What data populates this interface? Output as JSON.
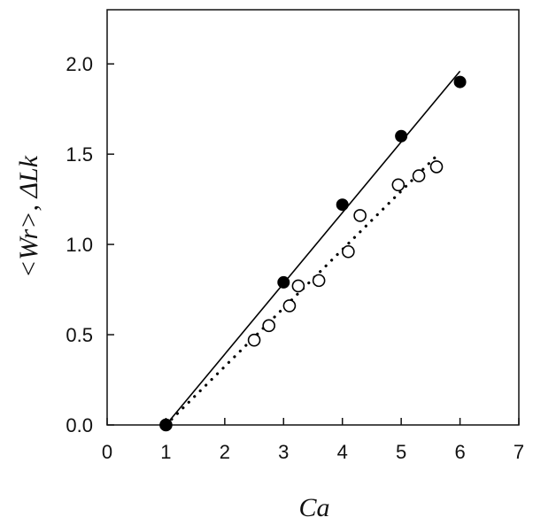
{
  "chart_data": {
    "type": "scatter",
    "xlabel": "Ca",
    "ylabel": "<Wr>, ΔLk",
    "xlim": [
      0,
      7
    ],
    "ylim": [
      0,
      2.3
    ],
    "x_ticks": [
      "0",
      "1",
      "2",
      "3",
      "4",
      "5",
      "6",
      "7"
    ],
    "y_ticks": [
      "0.0",
      "0.5",
      "1.0",
      "1.5",
      "2.0"
    ],
    "grid": false,
    "series": [
      {
        "marker": "filled-circle",
        "color": "#000000",
        "x": [
          1,
          3,
          4,
          5,
          6
        ],
        "y": [
          0.0,
          0.79,
          1.22,
          1.6,
          1.9
        ]
      },
      {
        "marker": "open-circle",
        "color": "#000000",
        "x": [
          1,
          2.5,
          2.75,
          3.1,
          3.25,
          3.6,
          4.1,
          4.3,
          4.95,
          5.3,
          5.6
        ],
        "y": [
          0.0,
          0.47,
          0.55,
          0.66,
          0.77,
          0.8,
          0.96,
          1.16,
          1.33,
          1.38,
          1.43
        ]
      }
    ],
    "fit_lines": [
      {
        "style": "solid",
        "x": [
          1,
          6
        ],
        "y": [
          0.0,
          1.96
        ]
      },
      {
        "style": "dotted",
        "x": [
          1,
          5.6
        ],
        "y": [
          0.0,
          1.49
        ]
      }
    ]
  }
}
